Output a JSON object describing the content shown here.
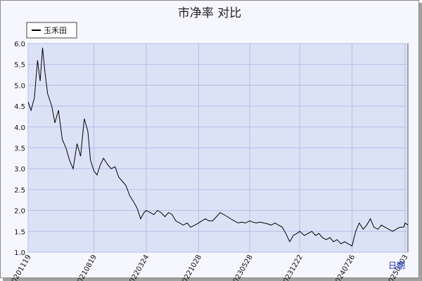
{
  "chart_data": {
    "type": "line",
    "title": "市净率  对比",
    "xlabel": "",
    "ylabel": "",
    "ylim": [
      1.0,
      6.0
    ],
    "yticks": [
      "1.0",
      "1.5",
      "2.0",
      "2.5",
      "3.0",
      "3.5",
      "4.0",
      "4.5",
      "5.0",
      "5.5",
      "6.0"
    ],
    "xticks": [
      "20201119",
      "20210819",
      "20220324",
      "20221028",
      "20230528",
      "20231222",
      "20240726",
      "20250303"
    ],
    "grid": true,
    "legend_position": "top-left",
    "footer_link": "日期",
    "series": [
      {
        "name": "玉禾田",
        "color": "#000000",
        "x": [
          "20201119",
          "20201201",
          "20201215",
          "20201228",
          "20210108",
          "20210118",
          "20210128",
          "20210208",
          "20210225",
          "20210310",
          "20210325",
          "20210410",
          "20210425",
          "20210510",
          "20210525",
          "20210610",
          "20210625",
          "20210710",
          "20210725",
          "20210805",
          "20210819",
          "20210901",
          "20210915",
          "20210928",
          "20211015",
          "20211030",
          "20211115",
          "20211130",
          "20211215",
          "20211230",
          "20220115",
          "20220201",
          "20220215",
          "20220301",
          "20220315",
          "20220324",
          "20220410",
          "20220425",
          "20220510",
          "20220525",
          "20220610",
          "20220625",
          "20220710",
          "20220725",
          "20220810",
          "20220825",
          "20220910",
          "20220925",
          "20221012",
          "20221028",
          "20221110",
          "20221125",
          "20221210",
          "20221225",
          "20230110",
          "20230125",
          "20230210",
          "20230225",
          "20230310",
          "20230325",
          "20230410",
          "20230425",
          "20230510",
          "20230528",
          "20230610",
          "20230625",
          "20230710",
          "20230725",
          "20230810",
          "20230825",
          "20230910",
          "20230925",
          "20231010",
          "20231025",
          "20231110",
          "20231125",
          "20231210",
          "20231222",
          "20240110",
          "20240125",
          "20240210",
          "20240225",
          "20240310",
          "20240325",
          "20240410",
          "20240425",
          "20240510",
          "20240525",
          "20240610",
          "20240625",
          "20240710",
          "20240726",
          "20240810",
          "20240825",
          "20240910",
          "20240925",
          "20241010",
          "20241025",
          "20241110",
          "20241125",
          "20241210",
          "20241225",
          "20250110",
          "20250125",
          "20250210",
          "20250225",
          "20250303",
          "20250315"
        ],
        "values": [
          4.6,
          4.4,
          4.7,
          5.6,
          5.1,
          5.9,
          5.3,
          4.8,
          4.5,
          4.1,
          4.4,
          3.7,
          3.5,
          3.2,
          3.0,
          3.6,
          3.3,
          4.2,
          3.9,
          3.2,
          2.95,
          2.85,
          3.1,
          3.25,
          3.1,
          3.0,
          3.05,
          2.8,
          2.7,
          2.6,
          2.35,
          2.2,
          2.05,
          1.8,
          1.95,
          2.0,
          1.95,
          1.9,
          2.0,
          1.95,
          1.85,
          1.95,
          1.9,
          1.75,
          1.7,
          1.65,
          1.7,
          1.6,
          1.65,
          1.7,
          1.75,
          1.8,
          1.75,
          1.75,
          1.85,
          1.95,
          1.9,
          1.85,
          1.8,
          1.75,
          1.7,
          1.72,
          1.7,
          1.75,
          1.72,
          1.7,
          1.72,
          1.7,
          1.68,
          1.65,
          1.7,
          1.65,
          1.6,
          1.45,
          1.25,
          1.4,
          1.45,
          1.5,
          1.4,
          1.45,
          1.5,
          1.4,
          1.45,
          1.35,
          1.3,
          1.35,
          1.25,
          1.3,
          1.2,
          1.25,
          1.2,
          1.15,
          1.5,
          1.7,
          1.55,
          1.65,
          1.8,
          1.6,
          1.55,
          1.65,
          1.6,
          1.55,
          1.5,
          1.55,
          1.6,
          1.6,
          1.7,
          1.65
        ]
      }
    ]
  }
}
